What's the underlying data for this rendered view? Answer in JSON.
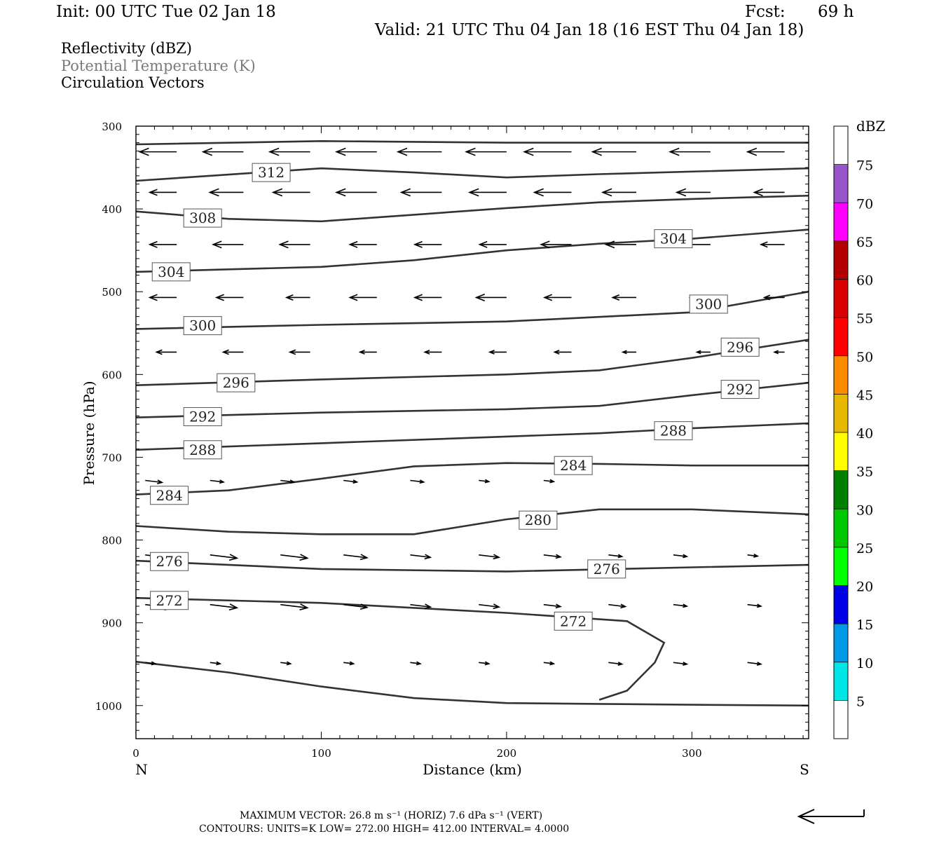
{
  "header": {
    "init": "Init: 00 UTC Tue 02 Jan 18",
    "fcst_label": "Fcst:",
    "fcst_value": "69 h",
    "valid": "Valid: 21 UTC Thu 04 Jan 18 (16 EST Thu 04 Jan 18)"
  },
  "fields": {
    "reflectivity": "Reflectivity (dBZ)",
    "theta": "Potential Temperature (K)",
    "vectors": "Circulation Vectors"
  },
  "footer": {
    "max_vector": "MAXIMUM VECTOR:  26.8 m s⁻¹ (HORIZ)          7.6 dPa s⁻¹ (VERT)",
    "contours": "CONTOURS:  UNITS=K  LOW=   272.00       HIGH=   412.00       INTERVAL=     4.0000"
  },
  "chart_data": {
    "type": "line",
    "title": "",
    "xlabel": "Distance (km)",
    "ylabel": "Pressure (hPa)",
    "xlim": [
      0,
      363
    ],
    "ylim": [
      300,
      1040
    ],
    "y_inverted": true,
    "x_ticks": [
      "0",
      "100",
      "200",
      "300"
    ],
    "y_ticks": [
      "300",
      "400",
      "500",
      "600",
      "700",
      "800",
      "900",
      "1000"
    ],
    "x_end_labels": {
      "left": "N",
      "right": "S"
    },
    "colorbar": {
      "unit": "dBZ",
      "levels": [
        "5",
        "10",
        "15",
        "20",
        "25",
        "30",
        "35",
        "40",
        "45",
        "50",
        "55",
        "60",
        "65",
        "70",
        "75"
      ],
      "colors": [
        "#ffffff",
        "#00e6e6",
        "#0099e6",
        "#0000e6",
        "#00ff00",
        "#00c800",
        "#008000",
        "#ffff00",
        "#e6b800",
        "#ff8c00",
        "#ff0000",
        "#d90000",
        "#b30000",
        "#ff00ff",
        "#9955cc",
        "#ffffff"
      ]
    },
    "isentropes": [
      {
        "label": "312",
        "x": [
          0,
          100,
          200,
          363
        ],
        "y": [
          322,
          318,
          320,
          320
        ]
      },
      {
        "label": "312",
        "x": [
          0,
          100,
          150,
          200,
          250,
          363
        ],
        "y": [
          366,
          351,
          356,
          362,
          358,
          351
        ]
      },
      {
        "label": "308",
        "x": [
          0,
          50,
          100,
          150,
          200,
          250,
          300,
          363
        ],
        "y": [
          403,
          412,
          415,
          407,
          399,
          392,
          388,
          384
        ]
      },
      {
        "label": "304",
        "x": [
          0,
          100,
          150,
          200,
          250,
          300,
          363
        ],
        "y": [
          476,
          470,
          462,
          450,
          442,
          436,
          425
        ]
      },
      {
        "label": "300",
        "x": [
          0,
          100,
          200,
          300,
          363
        ],
        "y": [
          545,
          540,
          536,
          525,
          500
        ]
      },
      {
        "label": "296",
        "x": [
          0,
          100,
          200,
          250,
          300,
          363
        ],
        "y": [
          613,
          606,
          600,
          595,
          580,
          558
        ]
      },
      {
        "label": "292",
        "x": [
          0,
          100,
          200,
          250,
          300,
          363
        ],
        "y": [
          652,
          646,
          642,
          638,
          625,
          610
        ]
      },
      {
        "label": "288",
        "x": [
          0,
          100,
          200,
          250,
          300,
          363
        ],
        "y": [
          691,
          683,
          675,
          671,
          665,
          659
        ]
      },
      {
        "label": "284",
        "x": [
          0,
          50,
          100,
          150,
          200,
          250,
          300,
          363
        ],
        "y": [
          745,
          740,
          726,
          711,
          707,
          708,
          710,
          710
        ]
      },
      {
        "label": "280",
        "x": [
          0,
          50,
          100,
          150,
          200,
          250,
          300,
          363
        ],
        "y": [
          783,
          790,
          793,
          793,
          775,
          763,
          763,
          769
        ]
      },
      {
        "label": "276",
        "x": [
          0,
          100,
          200,
          300,
          363
        ],
        "y": [
          825,
          835,
          838,
          833,
          830
        ]
      },
      {
        "label": "272",
        "x": [
          0,
          100,
          200,
          265,
          285,
          280,
          265,
          250
        ],
        "y": [
          870,
          876,
          888,
          898,
          924,
          948,
          982,
          993
        ]
      },
      {
        "label": "",
        "x": [
          0,
          50,
          100,
          150,
          200,
          250,
          300,
          363
        ],
        "y": [
          947,
          960,
          977,
          991,
          997,
          998,
          999,
          1000
        ]
      }
    ],
    "contour_labels": [
      {
        "text": "312",
        "x": 73,
        "y": 356
      },
      {
        "text": "308",
        "x": 36,
        "y": 411
      },
      {
        "text": "304",
        "x": 290,
        "y": 436
      },
      {
        "text": "304",
        "x": 19,
        "y": 476
      },
      {
        "text": "300",
        "x": 309,
        "y": 515
      },
      {
        "text": "300",
        "x": 36,
        "y": 541
      },
      {
        "text": "296",
        "x": 326,
        "y": 567
      },
      {
        "text": "296",
        "x": 54,
        "y": 610
      },
      {
        "text": "292",
        "x": 326,
        "y": 618
      },
      {
        "text": "292",
        "x": 36,
        "y": 651
      },
      {
        "text": "288",
        "x": 290,
        "y": 668
      },
      {
        "text": "288",
        "x": 36,
        "y": 691
      },
      {
        "text": "284",
        "x": 236,
        "y": 710
      },
      {
        "text": "284",
        "x": 18,
        "y": 746
      },
      {
        "text": "280",
        "x": 217,
        "y": 776
      },
      {
        "text": "276",
        "x": 18,
        "y": 826
      },
      {
        "text": "276",
        "x": 254,
        "y": 835
      },
      {
        "text": "272",
        "x": 18,
        "y": 873
      },
      {
        "text": "272",
        "x": 236,
        "y": 898
      }
    ],
    "vector_rows": [
      {
        "p": 331,
        "x": [
          22,
          58,
          94,
          130,
          165,
          200,
          235,
          270,
          310,
          350
        ],
        "u": [
          -1,
          -1,
          -1,
          -1,
          -1,
          -1,
          -1,
          -1,
          -1,
          -1
        ],
        "len": [
          1.1,
          1.2,
          1.2,
          1.2,
          1.3,
          1.2,
          1.4,
          1.3,
          1.2,
          1.1
        ]
      },
      {
        "p": 380,
        "x": [
          22,
          58,
          94,
          130,
          165,
          200,
          235,
          270,
          310,
          350
        ],
        "u": [
          -1,
          -1,
          -1,
          -1,
          -1,
          -1,
          -1,
          -1,
          -1,
          -1
        ],
        "len": [
          0.8,
          1.0,
          1.1,
          1.2,
          1.2,
          1.1,
          1.1,
          1.0,
          1.0,
          0.9
        ]
      },
      {
        "p": 443,
        "x": [
          22,
          58,
          94,
          130,
          165,
          200,
          235,
          270,
          310,
          350
        ],
        "u": [
          -1,
          -1,
          -1,
          -1,
          -1,
          -1,
          -1,
          -1,
          -1,
          -1
        ],
        "len": [
          0.8,
          0.9,
          0.9,
          0.8,
          0.8,
          0.8,
          0.9,
          0.9,
          0.8,
          0.7
        ]
      },
      {
        "p": 507,
        "x": [
          22,
          58,
          94,
          130,
          165,
          200,
          235,
          270,
          310,
          350
        ],
        "u": [
          -1,
          -1,
          -1,
          -1,
          -1,
          -1,
          -1,
          -1,
          -1,
          -1
        ],
        "len": [
          0.8,
          0.8,
          0.7,
          0.8,
          0.8,
          0.9,
          0.8,
          0.7,
          0.6,
          0.6
        ]
      },
      {
        "p": 573,
        "x": [
          22,
          58,
          94,
          130,
          165,
          200,
          235,
          270,
          310,
          350
        ],
        "u": [
          -1,
          -1,
          -1,
          -1,
          -1,
          -1,
          -1,
          -1,
          -1,
          -1
        ],
        "len": [
          0.6,
          0.6,
          0.6,
          0.5,
          0.5,
          0.5,
          0.5,
          0.4,
          0.4,
          0.3
        ]
      },
      {
        "p": 728,
        "x": [
          5,
          40,
          78,
          112,
          148,
          185,
          220
        ],
        "u": [
          1,
          1,
          1,
          1,
          1,
          1,
          1
        ],
        "len": [
          0.5,
          0.4,
          0.4,
          0.4,
          0.4,
          0.3,
          0.3
        ]
      },
      {
        "p": 818,
        "x": [
          5,
          40,
          78,
          112,
          148,
          185,
          220,
          255,
          290,
          330
        ],
        "u": [
          1,
          1,
          1,
          1,
          1,
          1,
          1,
          1,
          1,
          1
        ],
        "len": [
          0.7,
          0.8,
          0.8,
          0.7,
          0.6,
          0.6,
          0.5,
          0.4,
          0.4,
          0.3
        ]
      },
      {
        "p": 878,
        "x": [
          5,
          40,
          78,
          112,
          148,
          185,
          220,
          255,
          290,
          330
        ],
        "u": [
          1,
          1,
          1,
          1,
          1,
          1,
          1,
          1,
          1,
          1
        ],
        "len": [
          0.8,
          0.8,
          0.8,
          0.7,
          0.6,
          0.6,
          0.5,
          0.5,
          0.4,
          0.4
        ]
      },
      {
        "p": 948,
        "x": [
          5,
          40,
          78,
          112,
          148,
          185,
          220,
          255,
          290,
          330
        ],
        "u": [
          1,
          1,
          1,
          1,
          1,
          1,
          1,
          1,
          1,
          1
        ],
        "len": [
          0.3,
          0.3,
          0.3,
          0.3,
          0.3,
          0.3,
          0.3,
          0.4,
          0.4,
          0.4
        ]
      }
    ],
    "reference_vector": {
      "direction": "left"
    }
  }
}
